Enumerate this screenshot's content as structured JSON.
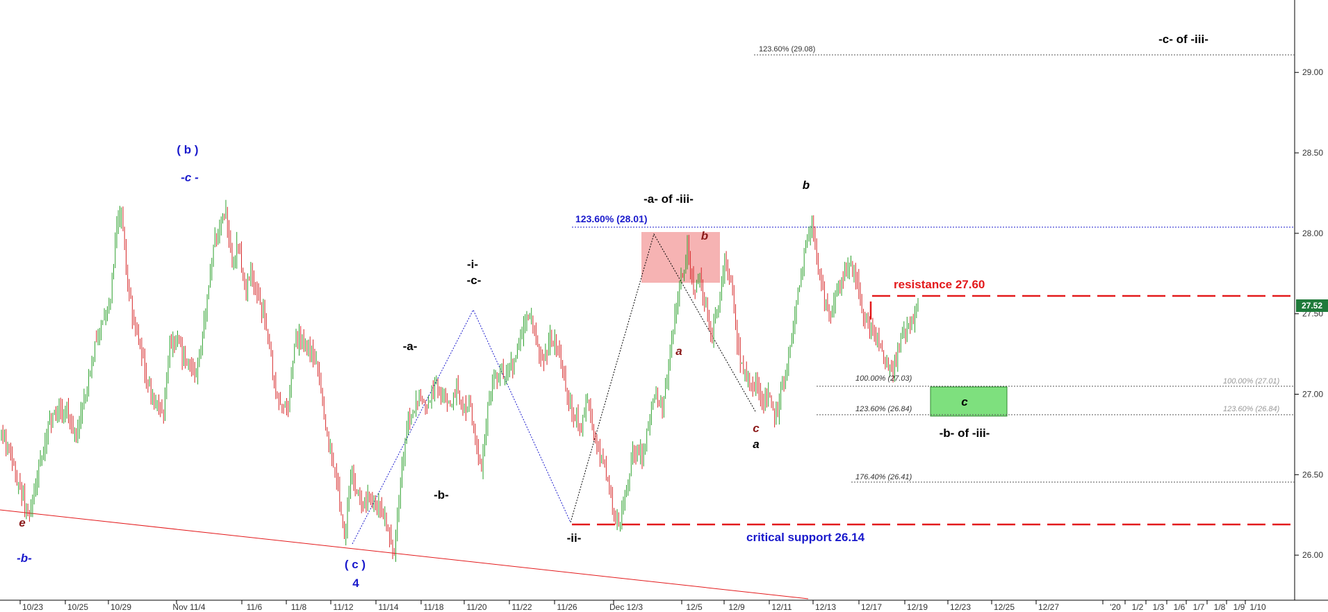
{
  "chart_data": {
    "type": "candlestick",
    "ylim": [
      25.72,
      29.45
    ],
    "yticks": [
      "26.00",
      "26.50",
      "27.00",
      "27.50",
      "28.00",
      "28.50",
      "29.00"
    ],
    "xticks": [
      "10/23",
      "10/25",
      "10/29",
      "Nov 11/4",
      "11/6",
      "11/8",
      "11/12",
      "11/14",
      "11/18",
      "11/20",
      "11/22",
      "11/26",
      "Dec 12/3",
      "12/5",
      "12/9",
      "12/11",
      "12/13",
      "12/17",
      "12/19",
      "12/23",
      "12/25",
      "12/27",
      "'20",
      "1/2",
      "1/3",
      "1/6",
      "1/7",
      "1/8",
      "1/9",
      "1/10"
    ],
    "last_price": "27.52",
    "price_path": [
      [
        0,
        26.75
      ],
      [
        6,
        26.6
      ],
      [
        12,
        26.4
      ],
      [
        18,
        26.24
      ],
      [
        24,
        26.55
      ],
      [
        30,
        26.8
      ],
      [
        36,
        26.9
      ],
      [
        42,
        26.9
      ],
      [
        48,
        26.75
      ],
      [
        54,
        27.0
      ],
      [
        60,
        27.3
      ],
      [
        66,
        27.5
      ],
      [
        70,
        27.6
      ],
      [
        74,
        28.05
      ],
      [
        77,
        28.1
      ],
      [
        80,
        27.8
      ],
      [
        84,
        27.5
      ],
      [
        88,
        27.3
      ],
      [
        92,
        27.15
      ],
      [
        96,
        27.0
      ],
      [
        100,
        26.95
      ],
      [
        104,
        26.85
      ],
      [
        108,
        27.3
      ],
      [
        112,
        27.35
      ],
      [
        116,
        27.25
      ],
      [
        120,
        27.2
      ],
      [
        124,
        27.1
      ],
      [
        128,
        27.3
      ],
      [
        132,
        27.6
      ],
      [
        136,
        27.9
      ],
      [
        140,
        28.05
      ],
      [
        144,
        28.15
      ],
      [
        148,
        27.8
      ],
      [
        152,
        27.95
      ],
      [
        156,
        27.65
      ],
      [
        160,
        27.75
      ],
      [
        164,
        27.6
      ],
      [
        168,
        27.5
      ],
      [
        172,
        27.3
      ],
      [
        176,
        27.0
      ],
      [
        180,
        26.95
      ],
      [
        184,
        26.9
      ],
      [
        188,
        27.3
      ],
      [
        192,
        27.35
      ],
      [
        196,
        27.3
      ],
      [
        200,
        27.25
      ],
      [
        204,
        27.1
      ],
      [
        208,
        26.8
      ],
      [
        212,
        26.6
      ],
      [
        216,
        26.4
      ],
      [
        220,
        26.1
      ],
      [
        224,
        26.5
      ],
      [
        228,
        26.4
      ],
      [
        232,
        26.3
      ],
      [
        236,
        26.35
      ],
      [
        240,
        26.35
      ],
      [
        244,
        26.3
      ],
      [
        248,
        26.15
      ],
      [
        252,
        26.0
      ],
      [
        256,
        26.5
      ],
      [
        260,
        26.8
      ],
      [
        264,
        26.9
      ],
      [
        268,
        27.0
      ],
      [
        272,
        26.9
      ],
      [
        276,
        27.0
      ],
      [
        280,
        27.05
      ],
      [
        284,
        27.0
      ],
      [
        288,
        26.9
      ],
      [
        292,
        27.05
      ],
      [
        296,
        26.9
      ],
      [
        300,
        26.95
      ],
      [
        304,
        26.7
      ],
      [
        308,
        26.55
      ],
      [
        312,
        26.9
      ],
      [
        316,
        27.1
      ],
      [
        320,
        27.15
      ],
      [
        324,
        27.1
      ],
      [
        328,
        27.2
      ],
      [
        332,
        27.3
      ],
      [
        336,
        27.45
      ],
      [
        340,
        27.46
      ],
      [
        344,
        27.3
      ],
      [
        348,
        27.2
      ],
      [
        352,
        27.35
      ],
      [
        356,
        27.3
      ],
      [
        360,
        27.15
      ],
      [
        364,
        26.95
      ],
      [
        368,
        26.85
      ],
      [
        372,
        26.8
      ],
      [
        376,
        26.95
      ],
      [
        380,
        26.75
      ],
      [
        384,
        26.65
      ],
      [
        388,
        26.5
      ],
      [
        392,
        26.3
      ],
      [
        396,
        26.16
      ],
      [
        400,
        26.35
      ],
      [
        404,
        26.6
      ],
      [
        408,
        26.65
      ],
      [
        412,
        26.6
      ],
      [
        416,
        26.9
      ],
      [
        420,
        27.0
      ],
      [
        424,
        26.9
      ],
      [
        428,
        27.15
      ],
      [
        432,
        27.5
      ],
      [
        436,
        27.7
      ],
      [
        440,
        27.9
      ],
      [
        444,
        27.65
      ],
      [
        448,
        27.7
      ],
      [
        452,
        27.55
      ],
      [
        456,
        27.35
      ],
      [
        460,
        27.55
      ],
      [
        464,
        27.85
      ],
      [
        468,
        27.7
      ],
      [
        472,
        27.3
      ],
      [
        476,
        27.15
      ],
      [
        480,
        27.05
      ],
      [
        484,
        27.05
      ],
      [
        488,
        26.95
      ],
      [
        492,
        27.0
      ],
      [
        496,
        26.85
      ],
      [
        500,
        27.0
      ],
      [
        504,
        27.15
      ],
      [
        508,
        27.4
      ],
      [
        512,
        27.7
      ],
      [
        516,
        27.9
      ],
      [
        520,
        28.1
      ],
      [
        524,
        27.75
      ],
      [
        528,
        27.6
      ],
      [
        532,
        27.5
      ],
      [
        536,
        27.65
      ],
      [
        540,
        27.7
      ],
      [
        544,
        27.8
      ],
      [
        548,
        27.75
      ],
      [
        552,
        27.5
      ],
      [
        556,
        27.45
      ],
      [
        560,
        27.35
      ],
      [
        564,
        27.3
      ],
      [
        568,
        27.2
      ],
      [
        572,
        27.15
      ],
      [
        576,
        27.3
      ],
      [
        580,
        27.4
      ],
      [
        584,
        27.45
      ],
      [
        588,
        27.52
      ]
    ],
    "horizontal_levels": [
      {
        "value": 29.08,
        "label": "123.60% (29.08)",
        "style": "dotted"
      },
      {
        "value": 28.01,
        "label": "123.60% (28.01)",
        "style": "dotted-blue"
      },
      {
        "value": 27.6,
        "label": "resistance 27.60",
        "style": "dashed-red"
      },
      {
        "value": 27.03,
        "label": "100.00% (27.03)",
        "style": "dotted"
      },
      {
        "value": 27.01,
        "label": "100.00% (27.01)",
        "style": "dotted-gray"
      },
      {
        "value": 26.84,
        "label": "123.60% (26.84)",
        "style": "dotted"
      },
      {
        "value": 26.84,
        "label": "123.60% (26.84)",
        "style": "dotted-gray"
      },
      {
        "value": 26.41,
        "label": "176.40% (26.41)",
        "style": "dotted"
      },
      {
        "value": 26.14,
        "label": "critical support 26.14",
        "style": "dashed-red"
      }
    ],
    "wave_labels": [
      "( b )",
      "-c -",
      "e",
      "-b-",
      "( c )",
      "4",
      "-a-",
      "-b-",
      "-i-",
      "-c-",
      "-ii-",
      "-a- of -iii-",
      "a",
      "b",
      "c",
      "a",
      "b",
      "c",
      "-b- of -iii-",
      "-c- of -iii-"
    ]
  },
  "labels": {
    "b_paren": "( b )",
    "c_minus_blue": "-c -",
    "e_lower": "e",
    "b_minus_blue": "-b-",
    "c_paren": "( c )",
    "four": "4",
    "a_minus": "-a-",
    "b_minus_black": "-b-",
    "i_minus": "-i-",
    "c_minus_black": "-c-",
    "ii_minus": "-ii-",
    "a_of_iii": "-a- of -iii-",
    "a_red": "a",
    "b_red": "b",
    "c_red": "c",
    "a_black": "a",
    "b_black": "b",
    "c_box": "c",
    "b_of_iii": "-b- of -iii-",
    "c_of_iii": "-c- of -iii-",
    "resistance": "resistance 27.60",
    "support": "critical support 26.14",
    "fib_2908": "123.60% (29.08)",
    "fib_2801": "123.60% (28.01)",
    "fib_2703": "100.00% (27.03)",
    "fib_2701": "100.00% (27.01)",
    "fib_2684a": "123.60% (26.84)",
    "fib_2684b": "123.60% (26.84)",
    "fib_2641": "176.40% (26.41)"
  },
  "colors": {
    "up": "#2ca02c",
    "down": "#d62728",
    "blue": "#1a1acc",
    "red": "#e31a1c",
    "darkred": "#8b1a1a",
    "pinkbox": "#f4a6a6",
    "greenbox": "#7ee07e",
    "dotted": "#555555"
  }
}
